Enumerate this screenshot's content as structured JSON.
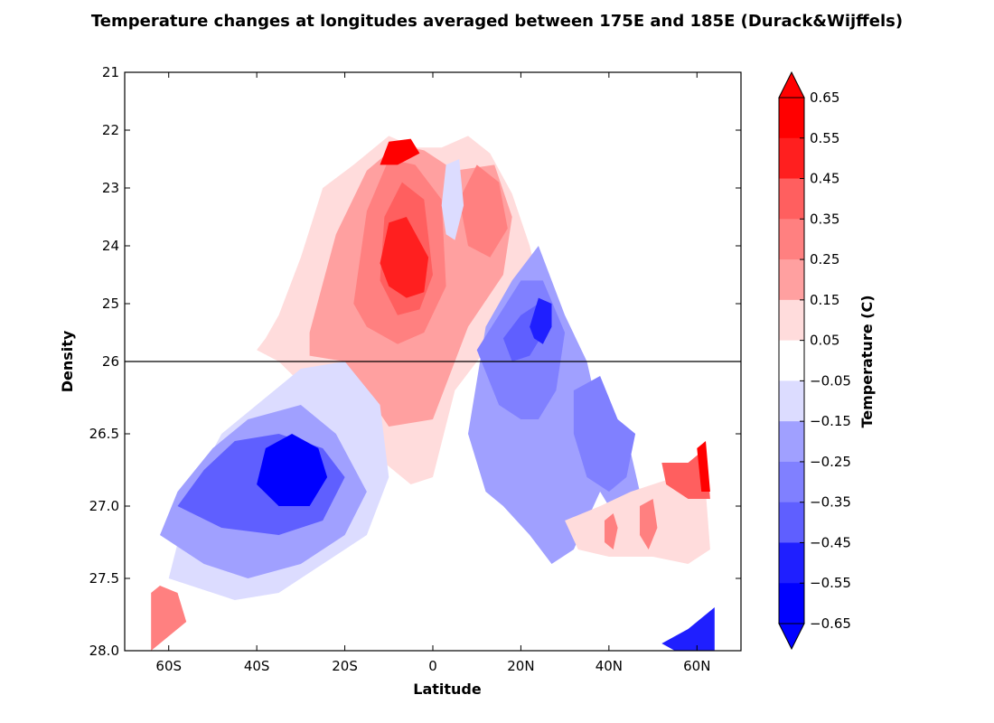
{
  "chart_data": {
    "type": "heatmap",
    "title": "Temperature changes at longitudes averaged between 175E and 185E (Durack&Wijffels)",
    "xlabel": "Latitude",
    "ylabel": "Density",
    "xlim": [
      -70,
      70
    ],
    "x_ticks": [
      {
        "value": -60,
        "label": "60S"
      },
      {
        "value": -40,
        "label": "40S"
      },
      {
        "value": -20,
        "label": "20S"
      },
      {
        "value": 0,
        "label": "0"
      },
      {
        "value": 20,
        "label": "20N"
      },
      {
        "value": 40,
        "label": "40N"
      },
      {
        "value": 60,
        "label": "60N"
      }
    ],
    "y_axis": "inverted, split at density 26 (upper panel 21-26, lower panel 26-28)",
    "y_ticks_upper": [
      "21",
      "22",
      "23",
      "24",
      "25",
      "26"
    ],
    "y_ticks_lower": [
      "26.5",
      "27.0",
      "27.5",
      "28.0"
    ],
    "colorbar": {
      "label": "Temperature (C)",
      "tick_labels": [
        "0.65",
        "0.55",
        "0.45",
        "0.35",
        "0.25",
        "0.15",
        "0.05",
        "−0.05",
        "−0.15",
        "−0.25",
        "−0.35",
        "−0.45",
        "−0.55",
        "−0.65"
      ],
      "levels": [
        -0.65,
        -0.55,
        -0.45,
        -0.35,
        -0.25,
        -0.15,
        -0.05,
        0.05,
        0.15,
        0.25,
        0.35,
        0.45,
        0.55,
        0.65
      ],
      "colors": [
        "#0000ff",
        "#1f1fff",
        "#5f5fff",
        "#8080ff",
        "#a0a0ff",
        "#dcdcff",
        "#ffffff",
        "#ffdcdc",
        "#ffa0a0",
        "#ff8080",
        "#ff5f5f",
        "#ff1f1f",
        "#ff0000"
      ],
      "extend": "both"
    },
    "regions": [
      {
        "name": "upper-warm-envelope",
        "value": 0.1,
        "points": [
          [
            -35,
            25.2
          ],
          [
            -30,
            24.2
          ],
          [
            -25,
            23
          ],
          [
            -18,
            22.6
          ],
          [
            -10,
            22.1
          ],
          [
            -4,
            22.3
          ],
          [
            2,
            22.3
          ],
          [
            8,
            22.1
          ],
          [
            13,
            22.4
          ],
          [
            18,
            23.1
          ],
          [
            22,
            24.0
          ],
          [
            25,
            25.0
          ],
          [
            15,
            25.5
          ],
          [
            5,
            26.2
          ],
          [
            0,
            26.8
          ],
          [
            -5,
            26.85
          ],
          [
            -15,
            26.6
          ],
          [
            -25,
            26.3
          ],
          [
            -35,
            26.0
          ],
          [
            -40,
            25.8
          ],
          [
            -38,
            25.6
          ]
        ]
      },
      {
        "name": "upper-warm-main",
        "value": 0.2,
        "points": [
          [
            -28,
            25.5
          ],
          [
            -22,
            23.8
          ],
          [
            -15,
            22.7
          ],
          [
            -8,
            22.25
          ],
          [
            -2,
            22.35
          ],
          [
            5,
            22.7
          ],
          [
            14,
            22.6
          ],
          [
            18,
            23.5
          ],
          [
            16,
            24.5
          ],
          [
            8,
            25.4
          ],
          [
            0,
            26.4
          ],
          [
            -10,
            26.45
          ],
          [
            -20,
            26.0
          ],
          [
            -28,
            25.9
          ]
        ]
      },
      {
        "name": "upper-warm-core-1",
        "value": 0.3,
        "points": [
          [
            -18,
            25.0
          ],
          [
            -15,
            23.4
          ],
          [
            -10,
            22.5
          ],
          [
            -4,
            22.6
          ],
          [
            2,
            23.2
          ],
          [
            3,
            24.7
          ],
          [
            -2,
            25.5
          ],
          [
            -8,
            25.7
          ],
          [
            -15,
            25.4
          ]
        ]
      },
      {
        "name": "upper-warm-core-2",
        "value": 0.4,
        "points": [
          [
            -12,
            24.6
          ],
          [
            -11,
            23.5
          ],
          [
            -7,
            22.9
          ],
          [
            -2,
            23.2
          ],
          [
            0,
            24.5
          ],
          [
            -3,
            25.1
          ],
          [
            -8,
            25.2
          ]
        ]
      },
      {
        "name": "upper-warm-core-3",
        "value": 0.5,
        "points": [
          [
            -12,
            24.3
          ],
          [
            -10,
            23.6
          ],
          [
            -6,
            23.5
          ],
          [
            -1,
            24.2
          ],
          [
            -2,
            24.8
          ],
          [
            -6,
            24.9
          ],
          [
            -10,
            24.7
          ]
        ]
      },
      {
        "name": "upper-warm-cap",
        "value": 0.6,
        "points": [
          [
            -12,
            22.6
          ],
          [
            -10,
            22.2
          ],
          [
            -5,
            22.15
          ],
          [
            -3,
            22.4
          ],
          [
            -8,
            22.6
          ]
        ]
      },
      {
        "name": "upper-warm-east",
        "value": 0.3,
        "points": [
          [
            6,
            23.2
          ],
          [
            10,
            22.6
          ],
          [
            15,
            22.9
          ],
          [
            17,
            23.7
          ],
          [
            13,
            24.2
          ],
          [
            8,
            24.0
          ]
        ]
      },
      {
        "name": "upper-cool-pocket",
        "value": -0.1,
        "points": [
          [
            2,
            23.3
          ],
          [
            3,
            22.6
          ],
          [
            6,
            22.5
          ],
          [
            7,
            23.3
          ],
          [
            5,
            23.9
          ],
          [
            3,
            23.8
          ]
        ]
      },
      {
        "name": "mid-cool-band",
        "value": -0.2,
        "points": [
          [
            8,
            26.5
          ],
          [
            12,
            25.4
          ],
          [
            18,
            24.6
          ],
          [
            24,
            24.0
          ],
          [
            30,
            25.2
          ],
          [
            35,
            26.0
          ],
          [
            38,
            26.4
          ],
          [
            44,
            26.5
          ],
          [
            47,
            26.9
          ],
          [
            42,
            27.1
          ],
          [
            38,
            26.9
          ],
          [
            32,
            27.3
          ],
          [
            27,
            27.4
          ],
          [
            22,
            27.2
          ],
          [
            16,
            27.0
          ],
          [
            12,
            26.9
          ]
        ]
      },
      {
        "name": "mid-cool-core",
        "value": -0.3,
        "points": [
          [
            10,
            25.8
          ],
          [
            15,
            25.2
          ],
          [
            20,
            24.6
          ],
          [
            25,
            24.6
          ],
          [
            30,
            25.5
          ],
          [
            28,
            26.2
          ],
          [
            24,
            26.4
          ],
          [
            20,
            26.4
          ],
          [
            15,
            26.3
          ]
        ]
      },
      {
        "name": "mid-cool-core-2",
        "value": -0.4,
        "points": [
          [
            16,
            25.6
          ],
          [
            20,
            25.2
          ],
          [
            24,
            25.0
          ],
          [
            26,
            25.4
          ],
          [
            22,
            25.9
          ],
          [
            18,
            26.0
          ]
        ]
      },
      {
        "name": "mid-cool-core-3",
        "value": -0.5,
        "points": [
          [
            22,
            25.4
          ],
          [
            24,
            24.9
          ],
          [
            27,
            25.0
          ],
          [
            27,
            25.4
          ],
          [
            25,
            25.7
          ],
          [
            23,
            25.6
          ]
        ]
      },
      {
        "name": "mid-cool-northeast",
        "value": -0.35,
        "points": [
          [
            32,
            26.2
          ],
          [
            38,
            26.1
          ],
          [
            42,
            26.4
          ],
          [
            46,
            26.5
          ],
          [
            44,
            26.8
          ],
          [
            40,
            26.9
          ],
          [
            35,
            26.8
          ],
          [
            32,
            26.5
          ]
        ]
      },
      {
        "name": "south-cool-envelope",
        "value": -0.1,
        "points": [
          [
            -60,
            27.5
          ],
          [
            -55,
            26.9
          ],
          [
            -48,
            26.5
          ],
          [
            -40,
            26.3
          ],
          [
            -30,
            26.05
          ],
          [
            -20,
            26.0
          ],
          [
            -12,
            26.3
          ],
          [
            -10,
            26.8
          ],
          [
            -15,
            27.2
          ],
          [
            -25,
            27.4
          ],
          [
            -35,
            27.6
          ],
          [
            -45,
            27.65
          ],
          [
            -55,
            27.55
          ]
        ]
      },
      {
        "name": "south-cool-main",
        "value": -0.25,
        "points": [
          [
            -62,
            27.2
          ],
          [
            -58,
            26.9
          ],
          [
            -50,
            26.6
          ],
          [
            -42,
            26.4
          ],
          [
            -30,
            26.3
          ],
          [
            -22,
            26.5
          ],
          [
            -15,
            26.9
          ],
          [
            -20,
            27.2
          ],
          [
            -30,
            27.4
          ],
          [
            -42,
            27.5
          ],
          [
            -52,
            27.4
          ]
        ]
      },
      {
        "name": "south-cool-core",
        "value": -0.4,
        "points": [
          [
            -58,
            27.0
          ],
          [
            -52,
            26.75
          ],
          [
            -45,
            26.55
          ],
          [
            -35,
            26.5
          ],
          [
            -25,
            26.6
          ],
          [
            -20,
            26.8
          ],
          [
            -25,
            27.1
          ],
          [
            -35,
            27.2
          ],
          [
            -48,
            27.15
          ]
        ]
      },
      {
        "name": "south-cool-center",
        "value": -0.6,
        "points": [
          [
            -40,
            26.85
          ],
          [
            -38,
            26.6
          ],
          [
            -32,
            26.5
          ],
          [
            -26,
            26.6
          ],
          [
            -24,
            26.8
          ],
          [
            -28,
            27.0
          ],
          [
            -35,
            27.0
          ]
        ]
      },
      {
        "name": "north-warm-patch",
        "value": 0.1,
        "points": [
          [
            30,
            27.1
          ],
          [
            38,
            27.0
          ],
          [
            45,
            26.9
          ],
          [
            55,
            26.8
          ],
          [
            62,
            26.9
          ],
          [
            63,
            27.3
          ],
          [
            58,
            27.4
          ],
          [
            50,
            27.35
          ],
          [
            40,
            27.35
          ],
          [
            33,
            27.3
          ]
        ]
      },
      {
        "name": "north-warm-spot-1",
        "value": 0.25,
        "points": [
          [
            39,
            27.1
          ],
          [
            41,
            27.05
          ],
          [
            42,
            27.15
          ],
          [
            41,
            27.3
          ],
          [
            39,
            27.25
          ]
        ]
      },
      {
        "name": "north-warm-spot-2",
        "value": 0.25,
        "points": [
          [
            47,
            27.0
          ],
          [
            50,
            26.95
          ],
          [
            51,
            27.15
          ],
          [
            49,
            27.3
          ],
          [
            47,
            27.2
          ]
        ]
      },
      {
        "name": "north-warm-northeast",
        "value": 0.35,
        "points": [
          [
            52,
            26.7
          ],
          [
            58,
            26.7
          ],
          [
            62,
            26.6
          ],
          [
            63,
            26.95
          ],
          [
            58,
            26.95
          ],
          [
            53,
            26.85
          ]
        ]
      },
      {
        "name": "north-warm-edge",
        "value": 0.6,
        "points": [
          [
            60,
            26.6
          ],
          [
            62,
            26.55
          ],
          [
            63,
            26.9
          ],
          [
            61,
            26.9
          ]
        ]
      },
      {
        "name": "south-warm-edge",
        "value": 0.25,
        "points": [
          [
            -64,
            27.6
          ],
          [
            -62,
            27.55
          ],
          [
            -58,
            27.6
          ],
          [
            -56,
            27.8
          ],
          [
            -60,
            27.9
          ],
          [
            -64,
            28.0
          ]
        ]
      },
      {
        "name": "north-cool-bottom",
        "value": -0.5,
        "points": [
          [
            52,
            27.95
          ],
          [
            58,
            27.85
          ],
          [
            64,
            27.7
          ],
          [
            64,
            28.0
          ],
          [
            55,
            28.0
          ]
        ]
      }
    ]
  }
}
